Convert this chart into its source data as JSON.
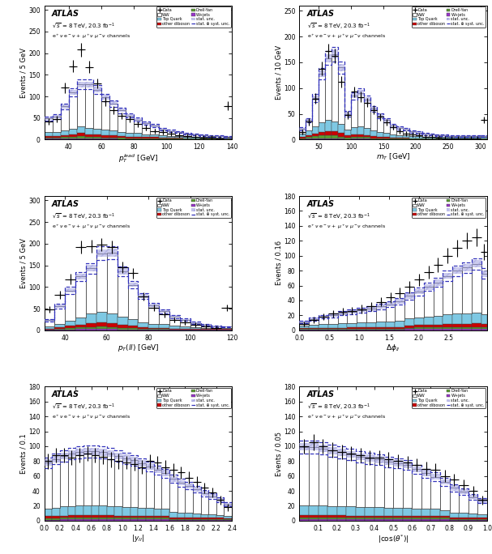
{
  "colors": {
    "WW": "#ffffff",
    "TopQuark": "#7ec8e3",
    "DrellYan": "#5a9e2f",
    "other_diboson": "#cc0000",
    "Wjets": "#9933cc",
    "stat_unc_hatch": "#9999dd",
    "stat_syst_line": "#3333bb",
    "data_marker": "#000000"
  },
  "panel1": {
    "xlabel": "$p_{T}^{lead}$ [GeV]",
    "ylabel": "Events / 5 GeV",
    "bin_edges": [
      25,
      30,
      35,
      40,
      45,
      50,
      55,
      60,
      65,
      70,
      75,
      80,
      85,
      90,
      95,
      100,
      105,
      110,
      115,
      120,
      125,
      130,
      135,
      140
    ],
    "WW": [
      32,
      35,
      55,
      85,
      98,
      100,
      90,
      75,
      62,
      50,
      40,
      31,
      25,
      19,
      14,
      11,
      9,
      7,
      5,
      4,
      3,
      3,
      2
    ],
    "TopQuark": [
      8,
      9,
      11,
      13,
      15,
      15,
      14,
      13,
      12,
      10,
      9,
      8,
      7,
      7,
      6,
      5,
      5,
      4,
      4,
      3,
      3,
      2,
      2
    ],
    "DrellYan": [
      3,
      3,
      4,
      4,
      5,
      4,
      4,
      3,
      3,
      3,
      2,
      2,
      2,
      2,
      1,
      1,
      1,
      1,
      1,
      1,
      1,
      1,
      1
    ],
    "other_diboson": [
      4,
      4,
      5,
      6,
      7,
      7,
      6,
      5,
      5,
      4,
      4,
      4,
      3,
      3,
      2,
      2,
      2,
      1,
      1,
      1,
      1,
      1,
      1
    ],
    "Wjets": [
      2,
      2,
      2,
      2,
      3,
      2,
      2,
      2,
      2,
      1,
      1,
      1,
      1,
      1,
      1,
      1,
      1,
      1,
      1,
      1,
      1,
      1,
      1
    ],
    "data_x": [
      27.5,
      32.5,
      37.5,
      42.5,
      47.5,
      52.5,
      57.5,
      62.5,
      67.5,
      72.5,
      77.5,
      82.5,
      87.5,
      92.5,
      97.5,
      102.5,
      107.5,
      112.5,
      117.5,
      122.5,
      127.5,
      132.5,
      137.5
    ],
    "data_y": [
      42,
      48,
      120,
      170,
      208,
      168,
      130,
      88,
      68,
      55,
      48,
      36,
      28,
      20,
      18,
      14,
      10,
      8,
      6,
      5,
      4,
      3,
      78
    ],
    "data_xerr": [
      2.5,
      2.5,
      2.5,
      2.5,
      2.5,
      2.5,
      2.5,
      2.5,
      2.5,
      2.5,
      2.5,
      2.5,
      2.5,
      2.5,
      2.5,
      2.5,
      2.5,
      2.5,
      2.5,
      2.5,
      2.5,
      2.5,
      2.5
    ],
    "data_yerr": [
      7,
      8,
      12,
      14,
      16,
      14,
      12,
      10,
      9,
      8,
      7,
      7,
      6,
      5,
      5,
      4,
      4,
      3,
      3,
      2,
      2,
      2,
      10
    ],
    "ylim": [
      0,
      310
    ],
    "yticks": [
      0,
      50,
      100,
      150,
      200,
      250,
      300
    ],
    "xlim": [
      25,
      140
    ],
    "xticks": [
      40,
      60,
      80,
      100,
      120,
      140
    ]
  },
  "panel2": {
    "xlabel": "$m_{T}$ [GeV]",
    "ylabel": "Events / 10 GeV",
    "bin_edges": [
      20,
      30,
      40,
      50,
      60,
      70,
      80,
      90,
      100,
      110,
      120,
      130,
      140,
      150,
      160,
      170,
      180,
      190,
      200,
      210,
      220,
      230,
      240,
      250,
      260,
      270,
      280,
      290,
      300,
      310
    ],
    "WW": [
      10,
      20,
      55,
      95,
      120,
      130,
      110,
      30,
      60,
      65,
      55,
      42,
      32,
      24,
      18,
      14,
      11,
      9,
      7,
      5,
      4,
      3,
      3,
      2,
      2,
      2,
      2,
      2,
      2
    ],
    "TopQuark": [
      6,
      10,
      14,
      18,
      22,
      20,
      17,
      12,
      15,
      16,
      14,
      11,
      9,
      8,
      6,
      5,
      5,
      4,
      4,
      3,
      3,
      2,
      2,
      2,
      2,
      2,
      2,
      2,
      2
    ],
    "DrellYan": [
      2,
      3,
      4,
      5,
      5,
      5,
      4,
      3,
      3,
      3,
      3,
      2,
      2,
      2,
      1,
      1,
      1,
      1,
      1,
      1,
      1,
      1,
      1,
      1,
      1,
      1,
      1,
      1,
      1
    ],
    "other_diboson": [
      2,
      3,
      5,
      7,
      8,
      8,
      7,
      4,
      5,
      5,
      4,
      4,
      3,
      3,
      2,
      2,
      2,
      1,
      1,
      1,
      1,
      1,
      1,
      1,
      1,
      1,
      1,
      1,
      1
    ],
    "Wjets": [
      1,
      2,
      3,
      3,
      3,
      3,
      2,
      1,
      2,
      2,
      2,
      1,
      1,
      1,
      1,
      1,
      1,
      1,
      1,
      1,
      1,
      1,
      1,
      1,
      1,
      1,
      1,
      1,
      1
    ],
    "data_x": [
      25,
      35,
      45,
      55,
      65,
      75,
      85,
      95,
      105,
      115,
      125,
      135,
      145,
      155,
      165,
      175,
      185,
      195,
      205,
      215,
      225,
      235,
      245,
      255,
      265,
      275,
      285,
      295,
      305
    ],
    "data_y": [
      15,
      35,
      80,
      138,
      172,
      162,
      112,
      48,
      93,
      83,
      72,
      58,
      44,
      34,
      24,
      17,
      12,
      10,
      8,
      6,
      5,
      4,
      3,
      3,
      2,
      2,
      2,
      2,
      38
    ],
    "data_xerr": [
      5,
      5,
      5,
      5,
      5,
      5,
      5,
      5,
      5,
      5,
      5,
      5,
      5,
      5,
      5,
      5,
      5,
      5,
      5,
      5,
      5,
      5,
      5,
      5,
      5,
      5,
      5,
      5,
      5
    ],
    "data_yerr": [
      5,
      7,
      10,
      13,
      14,
      14,
      11,
      8,
      10,
      10,
      9,
      8,
      7,
      6,
      5,
      5,
      4,
      4,
      3,
      3,
      2,
      2,
      2,
      2,
      2,
      2,
      2,
      2,
      6
    ],
    "ylim": [
      0,
      260
    ],
    "yticks": [
      0,
      50,
      100,
      150,
      200,
      250
    ],
    "xlim": [
      20,
      310
    ],
    "xticks": [
      50,
      100,
      150,
      200,
      250,
      300
    ]
  },
  "panel3": {
    "xlabel": "$p_{T}(ll)$ [GeV]",
    "ylabel": "Events / 5 GeV",
    "bin_edges": [
      30,
      35,
      40,
      45,
      50,
      55,
      60,
      65,
      70,
      75,
      80,
      85,
      90,
      95,
      100,
      105,
      110,
      115,
      120
    ],
    "WW": [
      15,
      40,
      70,
      95,
      105,
      135,
      140,
      105,
      80,
      60,
      42,
      30,
      22,
      15,
      10,
      7,
      4,
      3
    ],
    "TopQuark": [
      4,
      8,
      12,
      16,
      22,
      25,
      23,
      18,
      15,
      12,
      9,
      8,
      6,
      5,
      4,
      3,
      2,
      2
    ],
    "DrellYan": [
      1,
      2,
      3,
      4,
      4,
      5,
      4,
      4,
      3,
      2,
      2,
      2,
      1,
      1,
      1,
      1,
      1,
      1
    ],
    "other_diboson": [
      2,
      3,
      5,
      6,
      9,
      10,
      9,
      7,
      5,
      4,
      3,
      3,
      2,
      2,
      1,
      1,
      1,
      1
    ],
    "Wjets": [
      1,
      2,
      2,
      3,
      3,
      3,
      3,
      2,
      2,
      1,
      1,
      1,
      1,
      1,
      1,
      1,
      1,
      1
    ],
    "data_x": [
      32.5,
      37.5,
      42.5,
      47.5,
      52.5,
      57.5,
      62.5,
      67.5,
      72.5,
      77.5,
      82.5,
      87.5,
      92.5,
      97.5,
      102.5,
      107.5,
      112.5,
      117.5
    ],
    "data_y": [
      48,
      82,
      118,
      192,
      195,
      198,
      192,
      146,
      132,
      78,
      52,
      36,
      24,
      18,
      12,
      8,
      5,
      52
    ],
    "data_xerr": [
      2.5,
      2.5,
      2.5,
      2.5,
      2.5,
      2.5,
      2.5,
      2.5,
      2.5,
      2.5,
      2.5,
      2.5,
      2.5,
      2.5,
      2.5,
      2.5,
      2.5,
      2.5
    ],
    "data_yerr": [
      8,
      10,
      12,
      15,
      15,
      15,
      15,
      13,
      12,
      10,
      8,
      7,
      5,
      5,
      4,
      3,
      2,
      8
    ],
    "ylim": [
      0,
      310
    ],
    "yticks": [
      0,
      50,
      100,
      150,
      200,
      250,
      300
    ],
    "xlim": [
      30,
      120
    ],
    "xticks": [
      40,
      60,
      80,
      100,
      120
    ]
  },
  "panel4": {
    "xlabel": "$\\Delta\\phi_{ll}$",
    "ylabel": "Events / 0.16",
    "bin_edges": [
      0.0,
      0.16,
      0.32,
      0.48,
      0.64,
      0.8,
      0.96,
      1.12,
      1.28,
      1.44,
      1.6,
      1.76,
      1.92,
      2.08,
      2.24,
      2.4,
      2.56,
      2.72,
      2.88,
      3.04,
      3.14
    ],
    "WW": [
      5,
      8,
      10,
      12,
      14,
      15,
      16,
      18,
      20,
      23,
      26,
      30,
      35,
      40,
      45,
      52,
      58,
      62,
      65,
      55
    ],
    "TopQuark": [
      3,
      4,
      5,
      5,
      6,
      6,
      7,
      7,
      8,
      8,
      9,
      10,
      10,
      11,
      12,
      13,
      14,
      14,
      15,
      13
    ],
    "DrellYan": [
      1,
      1,
      1,
      1,
      1,
      1,
      1,
      1,
      1,
      1,
      1,
      1,
      2,
      2,
      2,
      2,
      2,
      2,
      2,
      2
    ],
    "other_diboson": [
      1,
      1,
      1,
      1,
      1,
      2,
      2,
      2,
      2,
      2,
      2,
      3,
      3,
      3,
      3,
      4,
      4,
      4,
      5,
      4
    ],
    "Wjets": [
      1,
      1,
      1,
      1,
      1,
      1,
      1,
      1,
      1,
      1,
      1,
      2,
      2,
      2,
      2,
      2,
      2,
      2,
      2,
      2
    ],
    "data_x": [
      0.08,
      0.24,
      0.4,
      0.56,
      0.72,
      0.88,
      1.04,
      1.2,
      1.36,
      1.52,
      1.68,
      1.84,
      2.0,
      2.16,
      2.32,
      2.48,
      2.64,
      2.8,
      2.96,
      3.09
    ],
    "data_y": [
      8,
      14,
      18,
      22,
      25,
      26,
      28,
      32,
      38,
      44,
      50,
      58,
      68,
      78,
      88,
      100,
      110,
      120,
      125,
      105
    ],
    "data_xerr": [
      0.08,
      0.08,
      0.08,
      0.08,
      0.08,
      0.08,
      0.08,
      0.08,
      0.08,
      0.08,
      0.08,
      0.08,
      0.08,
      0.08,
      0.08,
      0.08,
      0.08,
      0.08,
      0.08,
      0.06
    ],
    "data_yerr": [
      3,
      4,
      4,
      5,
      5,
      5,
      6,
      6,
      6,
      7,
      7,
      8,
      8,
      9,
      10,
      10,
      11,
      11,
      12,
      11
    ],
    "ylim": [
      0,
      180
    ],
    "yticks": [
      0,
      20,
      40,
      60,
      80,
      100,
      120,
      140,
      160,
      180
    ],
    "xlim": [
      0.0,
      3.14
    ],
    "xticks": [
      0,
      0.5,
      1.0,
      1.5,
      2.0,
      2.5
    ]
  },
  "panel5": {
    "xlabel": "$|y_{ll}|$",
    "ylabel": "Events / 0.1",
    "bin_edges": [
      0.0,
      0.1,
      0.2,
      0.3,
      0.4,
      0.5,
      0.6,
      0.7,
      0.8,
      0.9,
      1.0,
      1.1,
      1.2,
      1.3,
      1.4,
      1.5,
      1.6,
      1.7,
      1.8,
      1.9,
      2.0,
      2.1,
      2.2,
      2.3,
      2.4
    ],
    "WW": [
      62,
      66,
      68,
      70,
      71,
      72,
      72,
      71,
      70,
      68,
      66,
      63,
      60,
      56,
      52,
      48,
      44,
      40,
      36,
      32,
      28,
      24,
      20,
      16
    ],
    "TopQuark": [
      10,
      11,
      12,
      12,
      13,
      13,
      13,
      13,
      12,
      12,
      11,
      11,
      10,
      10,
      9,
      9,
      8,
      7,
      7,
      6,
      5,
      5,
      4,
      3
    ],
    "DrellYan": [
      2,
      2,
      2,
      2,
      2,
      2,
      2,
      2,
      2,
      2,
      2,
      2,
      2,
      2,
      2,
      2,
      1,
      1,
      1,
      1,
      1,
      1,
      1,
      1
    ],
    "other_diboson": [
      3,
      3,
      3,
      4,
      4,
      4,
      4,
      4,
      4,
      3,
      3,
      3,
      3,
      3,
      3,
      3,
      2,
      2,
      2,
      2,
      2,
      2,
      2,
      1
    ],
    "Wjets": [
      1,
      1,
      2,
      2,
      2,
      2,
      2,
      2,
      2,
      2,
      2,
      2,
      2,
      2,
      2,
      2,
      1,
      1,
      1,
      1,
      1,
      1,
      1,
      1
    ],
    "data_x": [
      0.05,
      0.15,
      0.25,
      0.35,
      0.45,
      0.55,
      0.65,
      0.75,
      0.85,
      0.95,
      1.05,
      1.15,
      1.25,
      1.35,
      1.45,
      1.55,
      1.65,
      1.75,
      1.85,
      1.95,
      2.05,
      2.15,
      2.25,
      2.35
    ],
    "data_y": [
      80,
      88,
      88,
      85,
      88,
      90,
      88,
      86,
      82,
      80,
      78,
      76,
      72,
      80,
      78,
      72,
      68,
      65,
      58,
      52,
      44,
      38,
      28,
      18
    ],
    "data_xerr": [
      0.05,
      0.05,
      0.05,
      0.05,
      0.05,
      0.05,
      0.05,
      0.05,
      0.05,
      0.05,
      0.05,
      0.05,
      0.05,
      0.05,
      0.05,
      0.05,
      0.05,
      0.05,
      0.05,
      0.05,
      0.05,
      0.05,
      0.05,
      0.05
    ],
    "data_yerr": [
      10,
      10,
      10,
      10,
      10,
      10,
      10,
      10,
      10,
      10,
      9,
      9,
      9,
      9,
      9,
      9,
      9,
      8,
      8,
      8,
      7,
      7,
      6,
      5
    ],
    "ylim": [
      0,
      180
    ],
    "yticks": [
      0,
      20,
      40,
      60,
      80,
      100,
      120,
      140,
      160,
      180
    ],
    "xlim": [
      0.0,
      2.4
    ],
    "xticks": [
      0,
      0.2,
      0.4,
      0.6,
      0.8,
      1.0,
      1.2,
      1.4,
      1.6,
      1.8,
      2.0,
      2.2,
      2.4
    ]
  },
  "panel6": {
    "xlabel": "$|\\cos(\\theta^{*})|$",
    "ylabel": "Events / 0.05",
    "bin_edges": [
      0.0,
      0.05,
      0.1,
      0.15,
      0.2,
      0.25,
      0.3,
      0.35,
      0.4,
      0.45,
      0.5,
      0.55,
      0.6,
      0.65,
      0.7,
      0.75,
      0.8,
      0.85,
      0.9,
      0.95,
      1.0
    ],
    "WW": [
      78,
      78,
      76,
      74,
      72,
      70,
      68,
      66,
      64,
      62,
      60,
      58,
      53,
      48,
      43,
      38,
      33,
      28,
      22,
      18
    ],
    "TopQuark": [
      13,
      13,
      13,
      12,
      12,
      12,
      11,
      11,
      11,
      10,
      10,
      10,
      9,
      9,
      9,
      8,
      7,
      7,
      6,
      5
    ],
    "DrellYan": [
      2,
      2,
      2,
      2,
      2,
      2,
      2,
      2,
      2,
      2,
      2,
      2,
      2,
      2,
      2,
      2,
      1,
      1,
      1,
      1
    ],
    "other_diboson": [
      4,
      4,
      4,
      4,
      4,
      3,
      3,
      3,
      3,
      3,
      3,
      3,
      3,
      3,
      3,
      2,
      2,
      2,
      2,
      2
    ],
    "Wjets": [
      2,
      2,
      2,
      2,
      2,
      2,
      2,
      2,
      2,
      2,
      2,
      2,
      2,
      2,
      2,
      2,
      1,
      1,
      1,
      1
    ],
    "data_x": [
      0.025,
      0.075,
      0.125,
      0.175,
      0.225,
      0.275,
      0.325,
      0.375,
      0.425,
      0.475,
      0.525,
      0.575,
      0.625,
      0.675,
      0.725,
      0.775,
      0.825,
      0.875,
      0.925,
      0.975
    ],
    "data_y": [
      100,
      105,
      100,
      95,
      92,
      90,
      88,
      85,
      85,
      82,
      80,
      78,
      75,
      70,
      68,
      60,
      55,
      48,
      40,
      28
    ],
    "data_xerr": [
      0.025,
      0.025,
      0.025,
      0.025,
      0.025,
      0.025,
      0.025,
      0.025,
      0.025,
      0.025,
      0.025,
      0.025,
      0.025,
      0.025,
      0.025,
      0.025,
      0.025,
      0.025,
      0.025,
      0.025
    ],
    "data_yerr": [
      10,
      11,
      10,
      10,
      10,
      10,
      10,
      10,
      10,
      10,
      9,
      9,
      9,
      9,
      9,
      8,
      8,
      7,
      7,
      6
    ],
    "ylim": [
      0,
      180
    ],
    "yticks": [
      0,
      20,
      40,
      60,
      80,
      100,
      120,
      140,
      160,
      180
    ],
    "xlim": [
      0.0,
      1.0
    ],
    "xticks": [
      0.1,
      0.2,
      0.3,
      0.4,
      0.5,
      0.6,
      0.7,
      0.8,
      0.9,
      1.0
    ]
  }
}
